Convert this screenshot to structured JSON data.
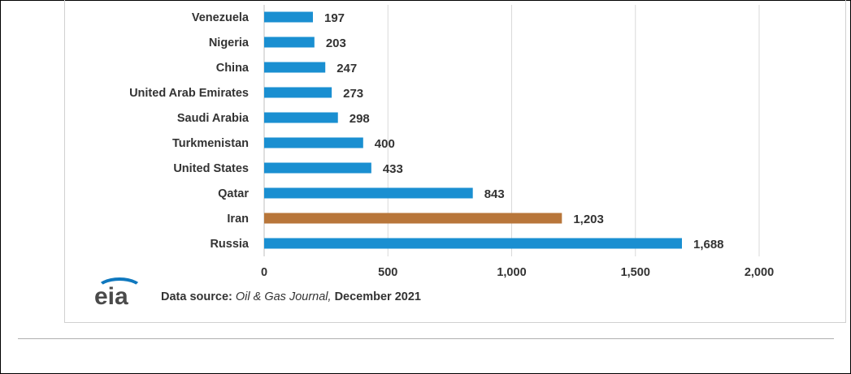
{
  "chart_data": {
    "type": "bar",
    "orientation": "horizontal",
    "categories": [
      "Venezuela",
      "Nigeria",
      "China",
      "United Arab Emirates",
      "Saudi Arabia",
      "Turkmenistan",
      "United States",
      "Qatar",
      "Iran",
      "Russia"
    ],
    "values": [
      197,
      203,
      247,
      273,
      298,
      400,
      433,
      843,
      1203,
      1688
    ],
    "value_labels": [
      "197",
      "203",
      "247",
      "273",
      "298",
      "400",
      "433",
      "843",
      "1,203",
      "1,688"
    ],
    "bar_colors": [
      "#1a8fd1",
      "#1a8fd1",
      "#1a8fd1",
      "#1a8fd1",
      "#1a8fd1",
      "#1a8fd1",
      "#1a8fd1",
      "#1a8fd1",
      "#b8763a",
      "#1a8fd1"
    ],
    "xlim": [
      0,
      2000
    ],
    "x_ticks": [
      0,
      500,
      1000,
      1500,
      2000
    ],
    "x_tick_labels": [
      "0",
      "500",
      "1,000",
      "1,500",
      "2,000"
    ],
    "grid": true,
    "title": "",
    "xlabel": "",
    "ylabel": ""
  },
  "footer": {
    "logo_text": "eia",
    "source_prefix": "Data source: ",
    "source_publication": "Oil & Gas Journal,",
    "source_date": " December 2021"
  },
  "colors": {
    "primary_bar": "#1a8fd1",
    "highlight_bar": "#b8763a",
    "logo_blue": "#0f78be",
    "gridline": "#d9d9d9"
  }
}
